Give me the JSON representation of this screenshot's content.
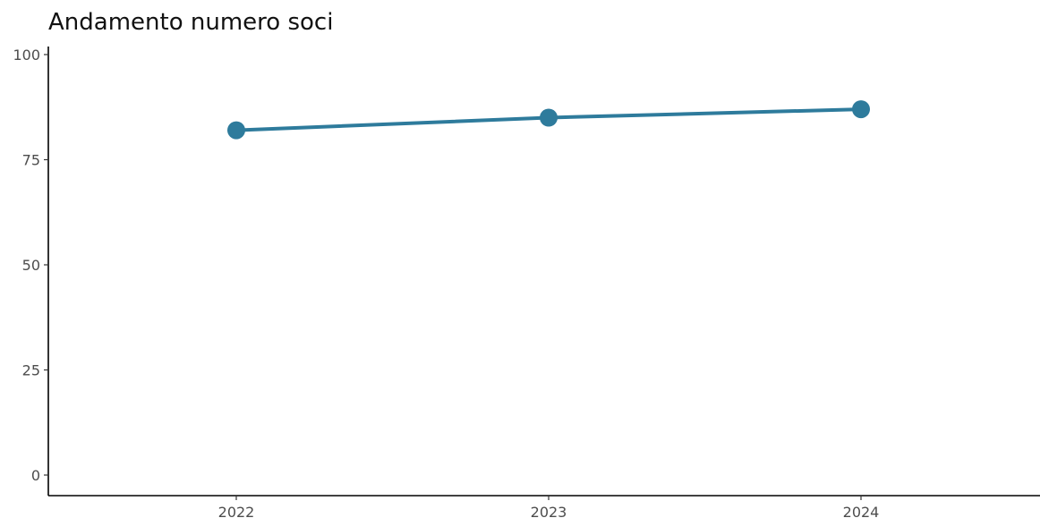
{
  "chart_data": {
    "type": "line",
    "title": "Andamento numero soci",
    "xlabel": "",
    "ylabel": "",
    "x": [
      "2022",
      "2023",
      "2024"
    ],
    "series": [
      {
        "values": [
          82,
          85,
          87
        ]
      }
    ],
    "ylim": [
      0,
      100
    ],
    "yticks": [
      "0",
      "25",
      "50",
      "75",
      "100"
    ],
    "grid": false,
    "legend": "none",
    "colors": {
      "series": "#2e7b9c",
      "axis": "#000000",
      "tick_text": "#4d4d4d"
    }
  }
}
